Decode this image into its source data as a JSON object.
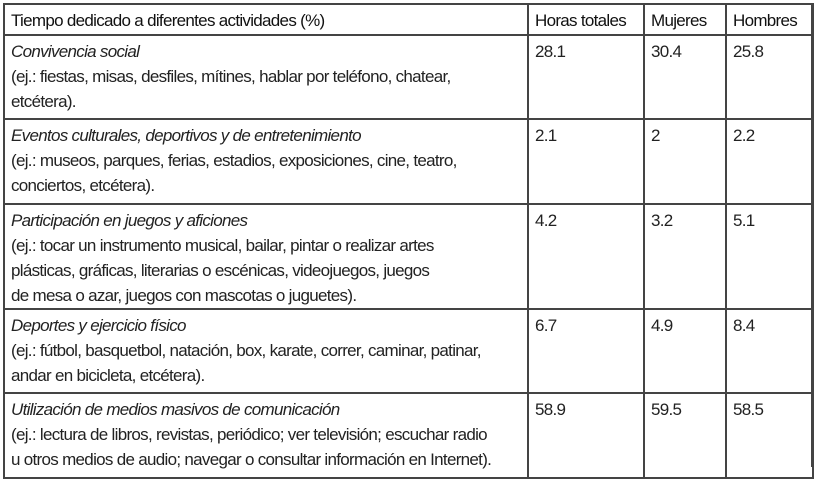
{
  "table": {
    "headers": [
      "Tiempo dedicado a diferentes actividades (%)",
      "Horas totales",
      "Mujeres",
      "Hombres"
    ],
    "rows": [
      {
        "name": "Convivencia social",
        "examples": [
          "(ej.: fiestas, misas, desfiles, mítines, hablar por teléfono, chatear,",
          "etcétera)."
        ],
        "total": "28.1",
        "mujeres": "30.4",
        "hombres": "25.8"
      },
      {
        "name": "Eventos culturales, deportivos y de entretenimiento",
        "examples": [
          "(ej.: museos, parques, ferias, estadios, exposiciones, cine, teatro,",
          "conciertos, etcétera)."
        ],
        "total": "2.1",
        "mujeres": "2",
        "hombres": "2.2"
      },
      {
        "name": "Participación en juegos y aficiones",
        "examples": [
          "(ej.: tocar un instrumento musical, bailar, pintar o realizar artes",
          "plásticas, gráficas, literarias o escénicas, videojuegos, juegos",
          "de mesa o azar, juegos con mascotas o juguetes)."
        ],
        "total": "4.2",
        "mujeres": "3.2",
        "hombres": "5.1"
      },
      {
        "name": "Deportes y ejercicio físico",
        "examples": [
          "(ej.: fútbol, basquetbol, natación, box, karate, correr, caminar, patinar,",
          "andar en bicicleta, etcétera)."
        ],
        "total": "6.7",
        "mujeres": "4.9",
        "hombres": "8.4"
      },
      {
        "name": "Utilización de medios masivos de comunicación",
        "examples": [
          "(ej.: lectura de libros, revistas, periódico; ver televisión; escuchar radio",
          "u otros medios de audio; navegar o consultar información en Internet)."
        ],
        "total": "58.9",
        "mujeres": "59.5",
        "hombres": "58.5"
      }
    ]
  }
}
